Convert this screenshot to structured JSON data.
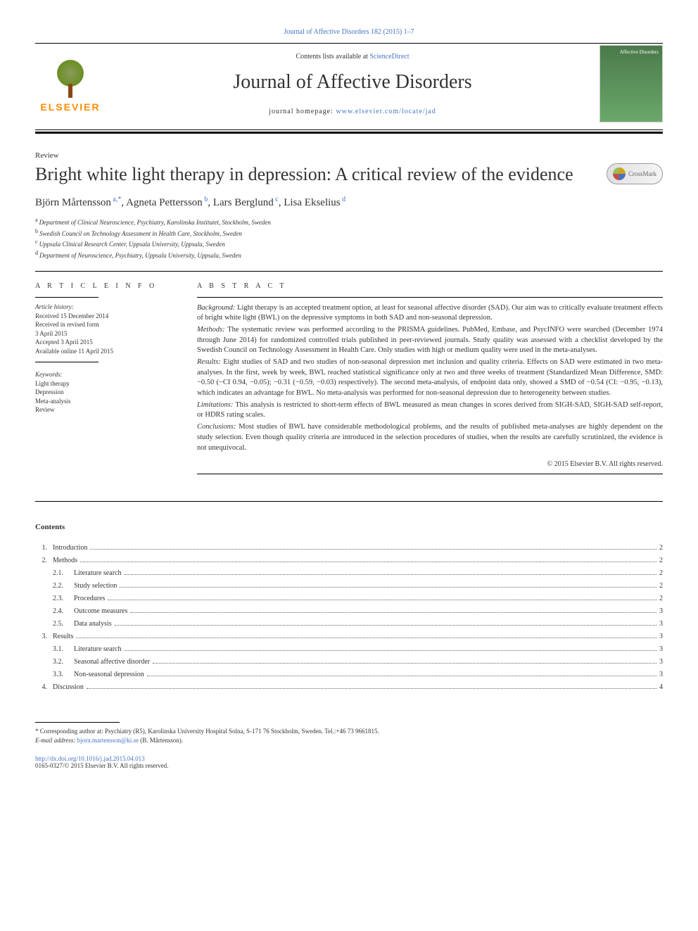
{
  "citation": "Journal of Affective Disorders 182 (2015) 1–7",
  "header": {
    "contents_avail": "Contents lists available at",
    "sciencedirect": "ScienceDirect",
    "journal_name": "Journal of Affective Disorders",
    "homepage_label": "journal homepage:",
    "homepage_url": "www.elsevier.com/locate/jad",
    "publisher": "ELSEVIER",
    "cover_text": "Affective Disorders"
  },
  "article": {
    "type": "Review",
    "title": "Bright white light therapy in depression: A critical review of the evidence",
    "crossmark": "CrossMark"
  },
  "authors": [
    {
      "name": "Björn Mårtensson",
      "sup": "a,*"
    },
    {
      "name": "Agneta Pettersson",
      "sup": "b"
    },
    {
      "name": "Lars Berglund",
      "sup": "c"
    },
    {
      "name": "Lisa Ekselius",
      "sup": "d"
    }
  ],
  "affiliations": [
    {
      "sup": "a",
      "text": "Department of Clinical Neuroscience, Psychiatry, Karolinska Institutet, Stockholm, Sweden"
    },
    {
      "sup": "b",
      "text": "Swedish Council on Technology Assessment in Health Care, Stockholm, Sweden"
    },
    {
      "sup": "c",
      "text": "Uppsala Clinical Research Center, Uppsala University, Uppsala, Sweden"
    },
    {
      "sup": "d",
      "text": "Department of Neuroscience, Psychiatry, Uppsala University, Uppsala, Sweden"
    }
  ],
  "article_info": {
    "heading": "A R T I C L E   I N F O",
    "history_label": "Article history:",
    "history": [
      "Received 15 December 2014",
      "Received in revised form",
      "3 April 2015",
      "Accepted 3 April 2015",
      "Available online 11 April 2015"
    ],
    "keywords_label": "Keywords:",
    "keywords": [
      "Light therapy",
      "Depression",
      "Meta-analysis",
      "Review"
    ]
  },
  "abstract": {
    "heading": "A B S T R A C T",
    "sections": [
      {
        "label": "Background:",
        "text": "Light therapy is an accepted treatment option, at least for seasonal affective disorder (SAD). Our aim was to critically evaluate treatment effects of bright white light (BWL) on the depressive symptoms in both SAD and non-seasonal depression."
      },
      {
        "label": "Methods:",
        "text": "The systematic review was performed according to the PRISMA guidelines. PubMed, Embase, and PsycINFO were searched (December 1974 through June 2014) for randomized controlled trials published in peer-reviewed journals. Study quality was assessed with a checklist developed by the Swedish Council on Technology Assessment in Health Care. Only studies with high or medium quality were used in the meta-analyses."
      },
      {
        "label": "Results:",
        "text": "Eight studies of SAD and two studies of non-seasonal depression met inclusion and quality criteria. Effects on SAD were estimated in two meta-analyses. In the first, week by week, BWL reached statistical significance only at two and three weeks of treatment (Standardized Mean Difference, SMD: −0.50 (−CI 0.94, −0.05); −0.31 (−0.59, −0.03) respectively). The second meta-analysis, of endpoint data only, showed a SMD of −0.54 (CI: −0.95, −0.13), which indicates an advantage for BWL. No meta-analysis was performed for non-seasonal depression due to heterogeneity between studies."
      },
      {
        "label": "Limitations:",
        "text": "This analysis is restricted to short-term effects of BWL measured as mean changes in scores derived from SIGH-SAD, SIGH-SAD self-report, or HDRS rating scales."
      },
      {
        "label": "Conclusions:",
        "text": "Most studies of BWL have considerable methodological problems, and the results of published meta-analyses are highly dependent on the study selection. Even though quality criteria are introduced in the selection procedures of studies, when the results are carefully scrutinized, the evidence is not unequivocal."
      }
    ],
    "copyright": "© 2015 Elsevier B.V. All rights reserved."
  },
  "contents": {
    "heading": "Contents",
    "items": [
      {
        "num": "1.",
        "sub": "",
        "title": "Introduction",
        "page": "2"
      },
      {
        "num": "2.",
        "sub": "",
        "title": "Methods",
        "page": "2"
      },
      {
        "num": "",
        "sub": "2.1.",
        "title": "Literature search",
        "page": "2"
      },
      {
        "num": "",
        "sub": "2.2.",
        "title": "Study selection",
        "page": "2"
      },
      {
        "num": "",
        "sub": "2.3.",
        "title": "Procedures",
        "page": "2"
      },
      {
        "num": "",
        "sub": "2.4.",
        "title": "Outcome measures",
        "page": "3"
      },
      {
        "num": "",
        "sub": "2.5.",
        "title": "Data analysis",
        "page": "3"
      },
      {
        "num": "3.",
        "sub": "",
        "title": "Results",
        "page": "3"
      },
      {
        "num": "",
        "sub": "3.1.",
        "title": "Literature search",
        "page": "3"
      },
      {
        "num": "",
        "sub": "3.2.",
        "title": "Seasonal affective disorder",
        "page": "3"
      },
      {
        "num": "",
        "sub": "3.3.",
        "title": "Non-seasonal depression",
        "page": "3"
      },
      {
        "num": "4.",
        "sub": "",
        "title": "Discussion",
        "page": "4"
      }
    ]
  },
  "footnotes": {
    "correspondence": "* Corresponding author at: Psychiatry (R5), Karolinska University Hospital Solna, S-171 76 Stockholm, Sweden. Tel.:+46 73 9661815.",
    "email_label": "E-mail address:",
    "email": "bjorn.martensson@ki.se",
    "email_name": "(B. Mårtensson)."
  },
  "footer": {
    "doi": "http://dx.doi.org/10.1016/j.jad.2015.04.013",
    "issn": "0165-0327/© 2015 Elsevier B.V. All rights reserved."
  },
  "colors": {
    "link": "#4472c4",
    "elsevier": "#ff8c00",
    "text": "#333333",
    "background": "#ffffff"
  }
}
